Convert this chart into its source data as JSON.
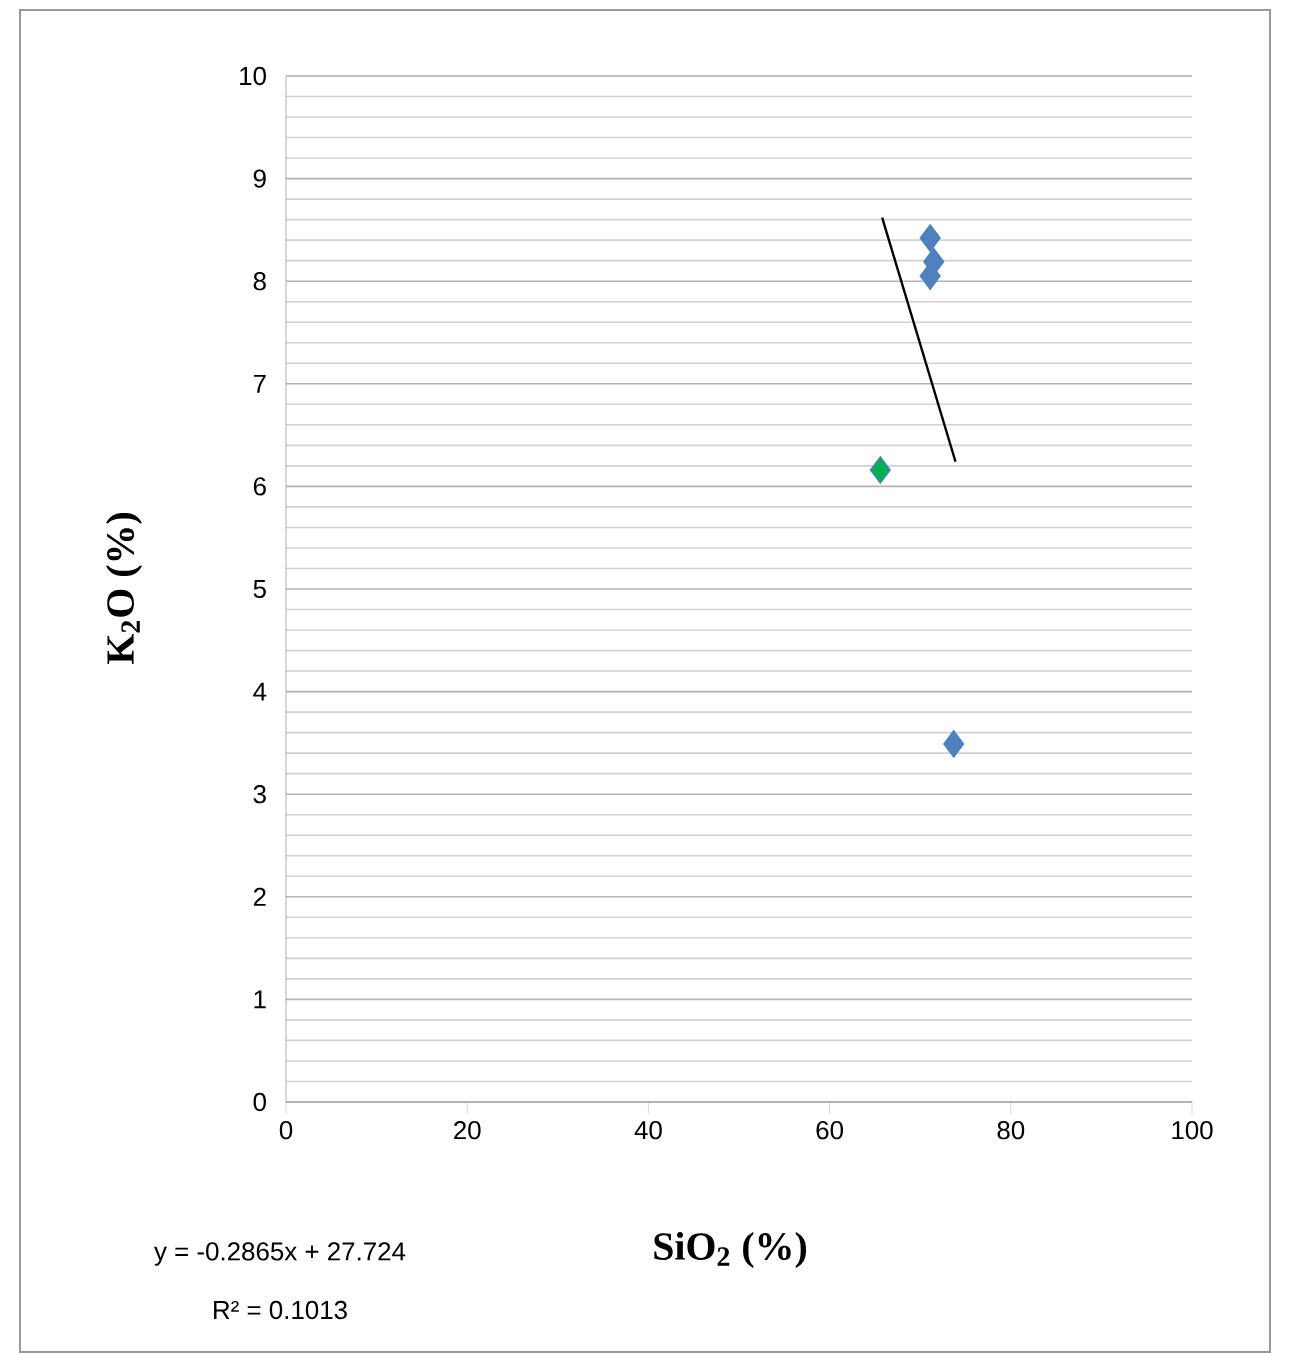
{
  "chart_data": {
    "type": "scatter",
    "xlabel": "SiO$_{2}$ (%)",
    "ylabel": "K$_{2}$O (%)",
    "xlim": [
      0,
      100
    ],
    "ylim": [
      0,
      10
    ],
    "xticks": [
      0,
      20,
      40,
      60,
      80,
      100
    ],
    "yticks": [
      0,
      1,
      2,
      3,
      4,
      5,
      6,
      7,
      8,
      9,
      10
    ],
    "grid": "y",
    "marker": "diamond",
    "annotations": [
      "y = -0.2865x + 27.724",
      "R² = 0.1013"
    ],
    "series": [
      {
        "x": [
          71.1,
          71.5,
          71.1,
          65.6,
          73.7
        ],
        "values": [
          8.42,
          8.19,
          8.05,
          6.16,
          3.49
        ],
        "colors": [
          "#4f81bd",
          "#4f81bd",
          "#4f81bd",
          "#00b050",
          "#4f81bd"
        ]
      },
      {
        "type": "line",
        "x": [
          65.8,
          73.9
        ],
        "values": [
          8.62,
          6.24
        ],
        "color": "#000000",
        "marker": "none"
      }
    ]
  }
}
